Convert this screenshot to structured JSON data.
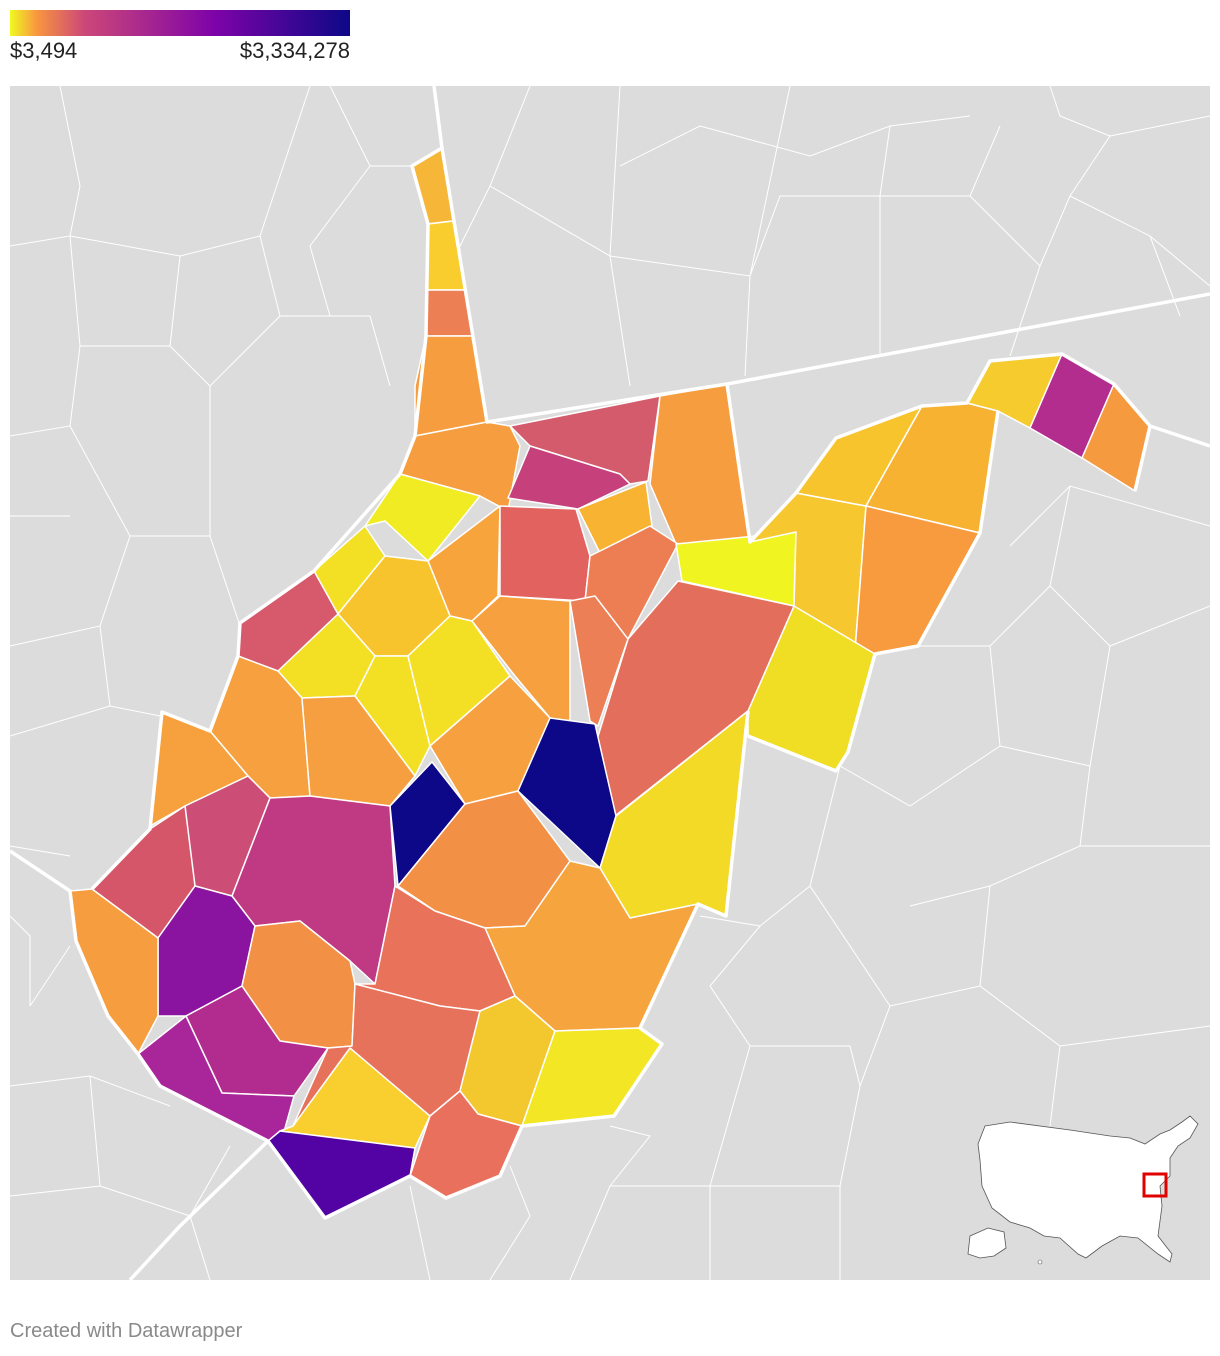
{
  "legend": {
    "min_label": "$3,494",
    "max_label": "$3,334,278",
    "color_stops": [
      "#f0f921",
      "#f89540",
      "#cc4778",
      "#7e03a8",
      "#0d0887"
    ]
  },
  "map": {
    "background_color": "#dcdcdc",
    "inset_icon": "us-locator-map",
    "inset_highlight_color": "#e00000"
  },
  "credit": "Created with Datawrapper"
}
